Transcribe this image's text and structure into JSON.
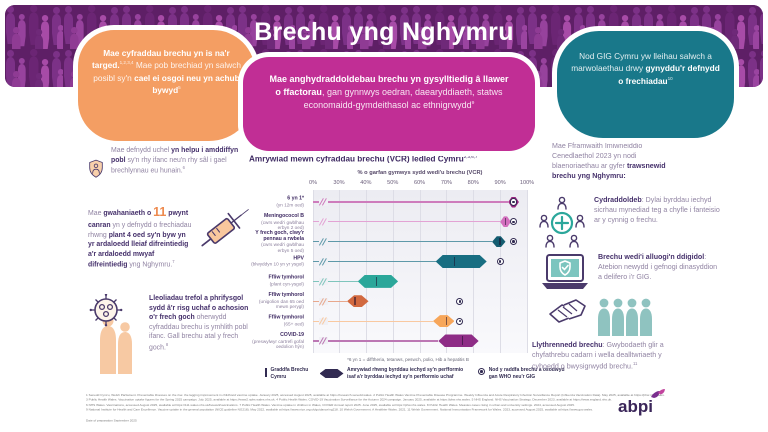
{
  "header": {
    "title": "Brechu yng Nghymru"
  },
  "callouts": {
    "left": {
      "b1": "Mae cyfraddau brechu yn is na'r targed.",
      "s1": "1,2,3,4",
      "t1": " Mae pob brechiad yn salwch posibl sy'n ",
      "b2": "cael ei osgoi neu yn achub bywyd",
      "s2": "5"
    },
    "center": {
      "b1": "Mae anghydraddoldebau brechu yn gysylltiedig â llawer o ffactorau",
      "t1": ", gan gynnwys oedran, daearyddiaeth, statws economaidd-gymdeithasol ac ethnigrwydd",
      "s1": "9"
    },
    "right": {
      "t1": "Nod GIG Cymru yw lleihau salwch a marwolaethau drwy ",
      "b1": "gynyddu'r defnydd o frechiadau",
      "s1": "10"
    }
  },
  "left_column": {
    "fact1": {
      "t1": "Mae defnydd uchel ",
      "b1": "yn helpu i amddiffyn pobl",
      "t2": " sy'n rhy ifanc neu'n rhy sâl i gael brechlynnau eu hunain.",
      "s1": "6"
    },
    "fact2": {
      "t1": "Mae ",
      "b1": "gwahaniaeth o ",
      "num": "11",
      "b2": " pwynt canran",
      "t2": " yn y defnydd o frechiadau rhwng ",
      "b3": "plant 4 oed sy'n byw yn yr ardaloedd lleiaf difreintiedig a'r ardaloedd mwyaf difreintiedig",
      "t3": " yng Nghymru.",
      "s1": "7"
    },
    "fact3": {
      "b1": "Lleoliadau trefol a phrifysgol sydd â'r risg uchaf o achosion o'r frech goch",
      "t1": " oherwydd cyfraddau brechu is ymhlith pobl ifanc. Gall brechu atal y frech goch.",
      "s1": "8"
    }
  },
  "right_column": {
    "intro": {
      "t1": "Mae Fframwaith Imiwneiddio Cenedlaethol 2023 yn nodi blaenoriaethau ar gyfer ",
      "b1": "trawsnewid brechu yng Nghymru:"
    },
    "item1": {
      "b": "Cydraddoldeb",
      "t": ": Dylai byrddau iechyd sicrhau mynediad teg a chyfle i fanteisio ar y cynnig o frechu."
    },
    "item2": {
      "b": "Brechu wedi'i alluogi'n ddigidol",
      "t": ": Atebion newydd i gefnogi dinasyddion a delifero i'r GIG."
    },
    "item3": {
      "b": "Llythrennedd brechu",
      "t": ": Gwybodaeth glir a chyfathrebu cadarn i wella dealltwriaeth y cyhoedd o bwysigrwydd brechu.",
      "s": "11"
    }
  },
  "chart_data": {
    "type": "bar",
    "variant": "horizontal-range-with-target-dots",
    "title": "Amrywiad mewn cyfraddau brechu (VCR) ledled Cymru",
    "title_sup": "2,3,6,7",
    "xlabel": "% o garfan gymwys sydd wedi'u brechu (VCR)",
    "unit": "%",
    "xlim": [
      0,
      100
    ],
    "axis_break_between": [
      0,
      30
    ],
    "grid": true,
    "ticks": [
      "0%",
      "30%",
      "40%",
      "50%",
      "60%",
      "70%",
      "80%",
      "90%",
      "100%"
    ],
    "tick_values": [
      0,
      30,
      40,
      50,
      60,
      70,
      80,
      90,
      100
    ],
    "rows": [
      {
        "label": "6 yn 1*",
        "sublabel": "(yn 12m oed)",
        "low": 93,
        "high": 97,
        "wales": 95,
        "target": 95,
        "box_color": "#9A2380",
        "line_color": "#CE7CBC"
      },
      {
        "label": "Meningococol B",
        "sublabel": "(cwrs wedi'i gwblhau erbyn 2 oed)",
        "low": 90,
        "high": 94,
        "wales": 92,
        "target": 95,
        "box_color": "#D36FBE",
        "line_color": "#E3A3D4"
      },
      {
        "label": "Y frech goch, clwy'r pennau a rwbela",
        "sublabel": "(cwrs wedi'i gwblhau erbyn 5 oed)",
        "low": 87,
        "high": 92,
        "wales": 90,
        "target": 95,
        "box_color": "#135C70",
        "line_color": "#5E99A9"
      },
      {
        "label": "HPV",
        "sublabel": "(blwyddyn 10 yn yr ysgol)",
        "low": 66,
        "high": 85,
        "wales": 73,
        "target": 90,
        "box_color": "#186E82",
        "line_color": "#5E99A9"
      },
      {
        "label": "Ffliw tymhorol",
        "sublabel": "(plant cyn-ysgol)",
        "low": 37,
        "high": 52,
        "wales": 44,
        "target": null,
        "box_color": "#2BA79A",
        "line_color": "#7FC5BC"
      },
      {
        "label": "Ffliw tymhorol",
        "sublabel": "(unigolion dan 65 oed mewn perygl)",
        "low": 33,
        "high": 41,
        "wales": 36,
        "target": 75,
        "box_color": "#D2693F",
        "line_color": "#E8A88C"
      },
      {
        "label": "Ffliw tymhorol",
        "sublabel": "(65+ oed)",
        "low": 65,
        "high": 73,
        "wales": 70,
        "target": 75,
        "box_color": "#F7A65A",
        "line_color": "#F9C9A0"
      },
      {
        "label": "COVID-19",
        "sublabel": "(preswylwyr cartrefi gofal oedolion hŷn)",
        "low": 67,
        "high": 82,
        "wales": 76,
        "target": null,
        "box_color": "#8E2C86",
        "line_color": "#BC77B4"
      }
    ],
    "legend": [
      {
        "symbol": "line",
        "label": "Graddfa Brechu Cymru"
      },
      {
        "symbol": "range-hex",
        "label": "Amrywiad rhwng byrddau iechyd sy'n perfformio isaf a'r byrddau iechyd sy'n perfformio uchaf"
      },
      {
        "symbol": "target-dot",
        "label": "Nod y raddfa brechu a osodwyd gan WHO neu'r GIG"
      }
    ],
    "footnote": "*6 yn 1 = difftheria, tetanws, peswch, polio, Hib a hepatitis B",
    "legend_position": "bottom"
  },
  "footer": {
    "lines": [
      "1 Senedd Cymru, Welsh Parliament. Preventable illnesses on the rise: the lagging improvement in childhood vaccine uptake. January 2025, accessed August 2025, available at https://research.senedd.wales. 2 Public Health Wales Vaccine Preventable Disease Programme. Weekly Influenza and Acute Respiratory Infection Surveillance Report (Influenza Vaccination Data). May 2025, available at https://phw.nhs.wales.",
      "3 Public Health Wales. Vaccination uptake figures for the Spring 2025 campaign. July 2025, available at https://www2.nphs.wales.nhs.uk. 4 Public Health Wales. COVID-19 Vaccination Surveillance for the Autumn 2024 campaign. January 2025, available at https://phw.nhs.wales. 5 NHS England. NHS Vaccination Strategy. December 2023, available at https://www.england.nhs.uk.",
      "6 NHS Wales. Vaccinations, accessed August 2025, available at https://111.wales.nhs.uk/livewell/vaccinations. 7 Public Health Wales. Vaccine uptake in children in Wales, COVER Annual report 2025. June 2025, available at https://phw.nhs.wales. 8 Public Health Wales. Measles cases rising in urban and university settings. 2024, accessed August 2025.",
      "9 National Institute for Health and Care Excellence. Vaccine uptake in the general population (NICE guideline NG218). May 2022, available at https://www.nice.org.uk/guidance/ng218. 10 Welsh Government. A Healthier Wales. 2021. 11 Welsh Government. National Immunisation Framework for Wales. 2023, accessed August 2025, available at https://www.gov.wales."
    ],
    "date": "Date of preparation September 2025",
    "logo": "abpi"
  },
  "colors": {
    "header_purple": "#5E1F66",
    "callout_orange": "#F49E63",
    "callout_teal": "#19788A",
    "callout_magenta": "#C12E95",
    "dark_text": "#45306B",
    "body_text": "#9184A3",
    "accent_orange": "#EE8A4E",
    "icon_teal": "#2BA79B",
    "icon_outline": "#4A3A6B",
    "target_marker": "#322B52"
  }
}
